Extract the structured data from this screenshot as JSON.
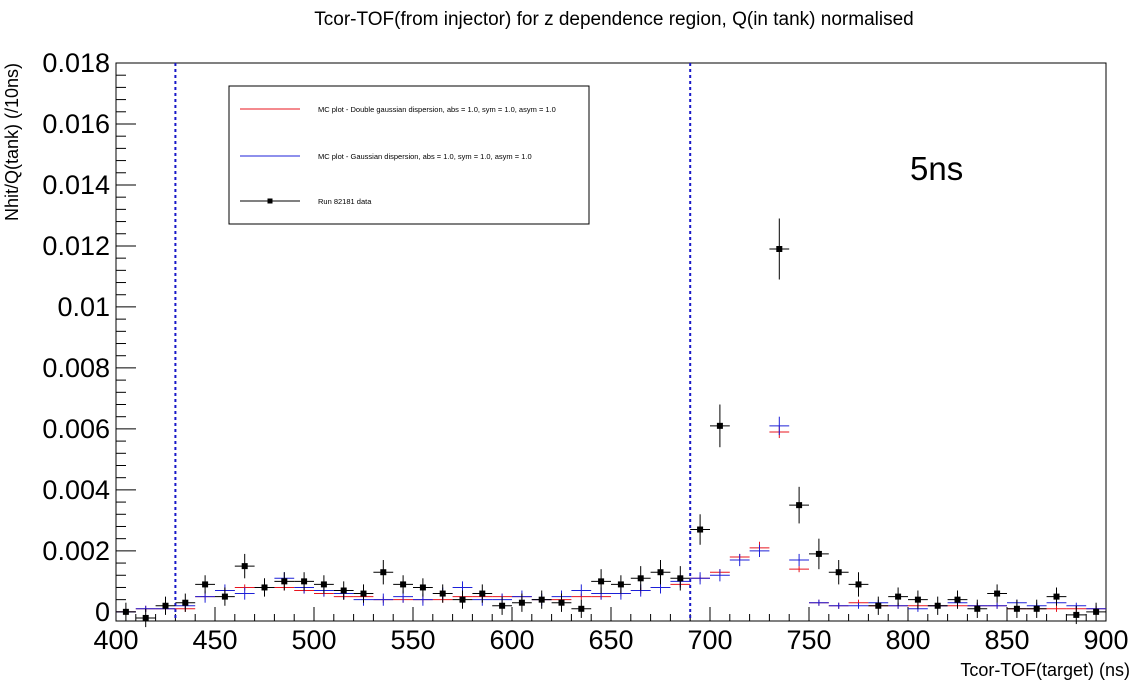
{
  "chart_data": {
    "type": "scatter",
    "title": "Tcor-TOF(from injector) for z dependence region, Q(in tank) normalised",
    "xlabel": "Tcor-TOF(target) (ns)",
    "ylabel": "Nhit/Q(tank) (/10ns)",
    "xlim": [
      400,
      900
    ],
    "ylim": [
      -0.0003,
      0.018
    ],
    "x_ticks": [
      "400",
      "450",
      "500",
      "550",
      "600",
      "650",
      "700",
      "750",
      "800",
      "850",
      "900"
    ],
    "y_ticks": [
      "0",
      "0.002",
      "0.004",
      "0.006",
      "0.008",
      "0.01",
      "0.012",
      "0.014",
      "0.016",
      "0.018"
    ],
    "bin_width": 10,
    "vlines": [
      430,
      690
    ],
    "annotation": "5ns",
    "legend_position": "top-left",
    "legend": [
      "MC plot - Double gaussian dispersion, abs = 1.0, sym = 1.0, asym = 1.0",
      "MC plot - Gaussian dispersion, abs = 1.0, sym = 1.0, asym = 1.0",
      "Run 82181 data"
    ],
    "series": [
      {
        "name": "MC plot - Double gaussian dispersion, abs = 1.0, sym = 1.0, asym = 1.0",
        "color": "#e8141e",
        "marker": "none",
        "x": [
          405,
          415,
          425,
          435,
          445,
          455,
          465,
          475,
          485,
          495,
          505,
          515,
          525,
          535,
          545,
          555,
          565,
          575,
          585,
          595,
          605,
          615,
          625,
          635,
          645,
          655,
          665,
          675,
          685,
          695,
          705,
          715,
          725,
          735,
          745,
          755,
          765,
          775,
          785,
          795,
          805,
          815,
          825,
          835,
          845,
          855,
          865,
          875,
          885,
          895
        ],
        "y": [
          0.0,
          0.0001,
          0.0001,
          0.0001,
          0.0005,
          0.0007,
          0.0008,
          0.0008,
          0.0008,
          0.0007,
          0.0006,
          0.0005,
          0.0005,
          0.0004,
          0.0004,
          0.0004,
          0.0004,
          0.0005,
          0.0005,
          0.0005,
          0.0005,
          0.0004,
          0.0004,
          0.0005,
          0.0005,
          0.0006,
          0.0007,
          0.0008,
          0.0009,
          0.0011,
          0.0013,
          0.0018,
          0.0021,
          0.0059,
          0.0014,
          0.0003,
          0.0002,
          0.0003,
          0.0002,
          0.0002,
          0.0002,
          0.0002,
          0.0002,
          0.0002,
          0.0002,
          0.0001,
          0.0001,
          0.0001,
          0.0001,
          0.0001
        ],
        "yerr": [
          0.0001,
          0.0001,
          0.0001,
          0.0001,
          0.0001,
          0.0001,
          0.0001,
          0.0001,
          0.0001,
          0.0001,
          0.0001,
          0.0001,
          0.0001,
          0.0001,
          0.0001,
          0.0001,
          0.0001,
          0.0001,
          0.0001,
          0.0001,
          0.0001,
          0.0001,
          0.0001,
          0.0001,
          0.0001,
          0.0001,
          0.0001,
          0.0001,
          0.0001,
          0.0001,
          0.0001,
          0.0001,
          0.0002,
          0.0002,
          0.0001,
          0.0001,
          0.0001,
          0.0001,
          0.0001,
          0.0001,
          0.0001,
          0.0001,
          0.0001,
          0.0001,
          0.0001,
          0.0001,
          0.0001,
          0.0001,
          0.0001,
          0.0001
        ]
      },
      {
        "name": "MC plot - Gaussian dispersion, abs = 1.0, sym = 1.0, asym = 1.0",
        "color": "#1d20d8",
        "marker": "none",
        "x": [
          405,
          415,
          425,
          435,
          445,
          455,
          465,
          475,
          485,
          495,
          505,
          515,
          525,
          535,
          545,
          555,
          565,
          575,
          585,
          595,
          605,
          615,
          625,
          635,
          645,
          655,
          665,
          675,
          685,
          695,
          705,
          715,
          725,
          735,
          745,
          755,
          765,
          775,
          785,
          795,
          805,
          815,
          825,
          835,
          845,
          855,
          865,
          875,
          885,
          895
        ],
        "y": [
          0.0,
          0.0001,
          0.0001,
          0.0002,
          0.0005,
          0.0007,
          0.0006,
          0.0008,
          0.0011,
          0.0008,
          0.0007,
          0.0006,
          0.0004,
          0.0004,
          0.0005,
          0.0004,
          0.0006,
          0.0008,
          0.0004,
          0.0004,
          0.0005,
          0.0004,
          0.0005,
          0.0007,
          0.0006,
          0.0006,
          0.0007,
          0.0008,
          0.001,
          0.0011,
          0.0012,
          0.0017,
          0.002,
          0.0061,
          0.0017,
          0.0003,
          0.0002,
          0.0002,
          0.0003,
          0.0002,
          0.0001,
          0.0002,
          0.0003,
          0.0002,
          0.0002,
          0.0003,
          0.0002,
          0.0003,
          0.0002,
          0.0001
        ],
        "yerr": [
          0.0001,
          0.0001,
          0.0001,
          0.0001,
          0.0002,
          0.0002,
          0.0002,
          0.0002,
          0.0002,
          0.0002,
          0.0002,
          0.0002,
          0.0002,
          0.0002,
          0.0002,
          0.0002,
          0.0002,
          0.0002,
          0.0002,
          0.0002,
          0.0002,
          0.0002,
          0.0002,
          0.0002,
          0.0002,
          0.0002,
          0.0002,
          0.0002,
          0.0002,
          0.0002,
          0.0002,
          0.0002,
          0.0002,
          0.0003,
          0.0002,
          0.0001,
          0.0001,
          0.0001,
          0.0001,
          0.0001,
          0.0001,
          0.0001,
          0.0001,
          0.0001,
          0.0001,
          0.0001,
          0.0001,
          0.0001,
          0.0001,
          0.0001
        ]
      },
      {
        "name": "Run 82181 data",
        "color": "#000000",
        "marker": "square",
        "x": [
          405,
          415,
          425,
          435,
          445,
          455,
          465,
          475,
          485,
          495,
          505,
          515,
          525,
          535,
          545,
          555,
          565,
          575,
          585,
          595,
          605,
          615,
          625,
          635,
          645,
          655,
          665,
          675,
          685,
          695,
          705,
          715,
          725,
          735,
          745,
          755,
          765,
          775,
          785,
          795,
          805,
          815,
          825,
          835,
          845,
          855,
          865,
          875,
          885,
          895
        ],
        "y": [
          0.0,
          -0.0002,
          0.0002,
          0.0003,
          0.0009,
          0.0005,
          0.0015,
          0.0008,
          0.001,
          0.001,
          0.0009,
          0.0007,
          0.0006,
          0.0013,
          0.0009,
          0.0008,
          0.0006,
          0.0004,
          0.0006,
          0.0002,
          0.0003,
          0.0004,
          0.0003,
          0.0001,
          0.001,
          0.0009,
          0.0011,
          0.0013,
          0.0011,
          0.0027,
          0.0061,
          null,
          null,
          0.0119,
          0.0035,
          0.0019,
          0.0013,
          0.0009,
          0.0002,
          0.0005,
          0.0004,
          0.0002,
          0.0004,
          0.0001,
          0.0006,
          0.0001,
          0.0001,
          0.0005,
          -0.0001,
          0.0
        ],
        "yerr": [
          0.0003,
          0.0003,
          0.0003,
          0.0003,
          0.0003,
          0.0003,
          0.0004,
          0.0003,
          0.0003,
          0.0003,
          0.0003,
          0.0003,
          0.0003,
          0.0004,
          0.0003,
          0.0003,
          0.0003,
          0.0003,
          0.0003,
          0.0003,
          0.0003,
          0.0003,
          0.0003,
          0.0003,
          0.0004,
          0.0003,
          0.0004,
          0.0004,
          0.0004,
          0.0005,
          0.0007,
          0,
          0,
          0.001,
          0.0006,
          0.0005,
          0.0004,
          0.0004,
          0.0003,
          0.0003,
          0.0003,
          0.0003,
          0.0003,
          0.0003,
          0.0003,
          0.0003,
          0.0003,
          0.0003,
          0.0003,
          0.0003
        ]
      }
    ]
  }
}
